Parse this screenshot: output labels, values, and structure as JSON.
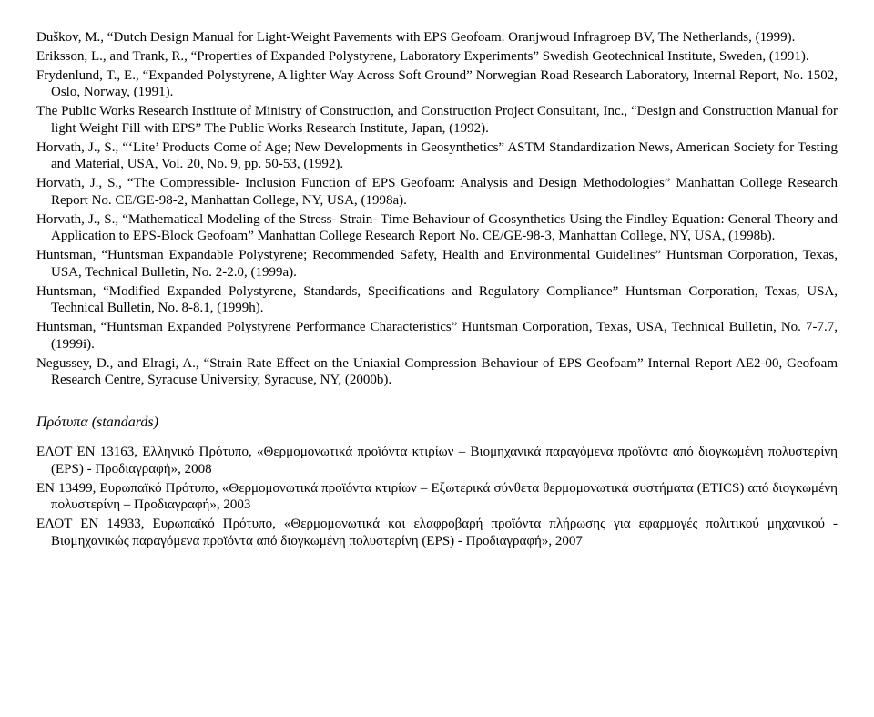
{
  "refs": [
    "Duškov, M., “Dutch Design Manual for Light-Weight Pavements with EPS Geofoam. Oranjwoud Infragroep BV, The Netherlands, (1999).",
    "Eriksson, L., and Trank, R., “Properties of Expanded Polystyrene, Laboratory Experiments” Swedish Geotechnical Institute, Sweden, (1991).",
    "Frydenlund, T., E., “Expanded Polystyrene, A lighter Way Across Soft Ground” Norwegian Road Research Laboratory, Internal Report, No. 1502, Oslo, Norway, (1991).",
    "The Public Works Research Institute of Ministry of Construction, and Construction Project Consultant, Inc., “Design and Construction Manual for light Weight Fill with EPS” The Public Works Research Institute, Japan, (1992).",
    "Horvath, J., S., “‘Lite’ Products Come of Age; New Developments in Geosynthetics” ASTM Standardization News, American Society for Testing and Material, USA, Vol. 20, No. 9, pp. 50-53, (1992).",
    "Horvath, J., S., “The Compressible- Inclusion Function of EPS Geofoam: Analysis and Design Methodologies” Manhattan College Research Report No. CE/GE-98-2, Manhattan College, NY, USA, (1998a).",
    "Horvath, J., S., “Mathematical Modeling of the Stress- Strain- Time Behaviour of Geosynthetics Using the Findley Equation: General Theory and Application to EPS-Block Geofoam” Manhattan College Research Report No. CE/GE-98-3, Manhattan College, NY, USA, (1998b).",
    "Huntsman, “Huntsman Expandable Polystyrene; Recommended Safety, Health and Environmental Guidelines” Huntsman Corporation, Texas, USA, Technical Bulletin, No. 2-2.0, (1999a).",
    "Huntsman, “Modified Expanded Polystyrene, Standards, Specifications and Regulatory Compliance” Huntsman Corporation, Texas, USA, Technical Bulletin, No. 8-8.1, (1999h).",
    "Huntsman, “Huntsman Expanded Polystyrene Performance Characteristics” Huntsman Corporation, Texas, USA, Technical Bulletin, No. 7-7.7, (1999i).",
    "Negussey, D., and Elragi, A., “Strain Rate Effect on the Uniaxial Compression Behaviour of EPS Geofoam” Internal Report AE2-00, Geofoam Research Centre, Syracuse University, Syracuse, NY, (2000b)."
  ],
  "section_title": "Πρότυπα (standards)",
  "standards": [
    "ΕΛΟΤ EN 13163, Ελληνικό Πρότυπο, «Θερμομονωτικά προϊόντα κτιρίων – Βιομηχανικά παραγόμενα προϊόντα από διογκωμένη πολυστερίνη (EPS) - Προδιαγραφή», 2008",
    "EN 13499, Ευρωπαϊκό Πρότυπο, «Θερμομονωτικά προϊόντα κτιρίων – Εξωτερικά σύνθετα θερμομονωτικά συστήματα (ETICS) από διογκωμένη πολυστερίνη – Προδιαγραφή», 2003",
    "ΕΛΟΤ EN 14933, Ευρωπαϊκό Πρότυπο, «Θερμομονωτικά και ελαφροβαρή προϊόντα πλήρωσης για εφαρμογές πολιτικού μηχανικού - Βιομηχανικώς παραγόμενα προϊόντα από διογκωμένη πολυστερίνη (EPS) - Προδιαγραφή», 2007"
  ]
}
